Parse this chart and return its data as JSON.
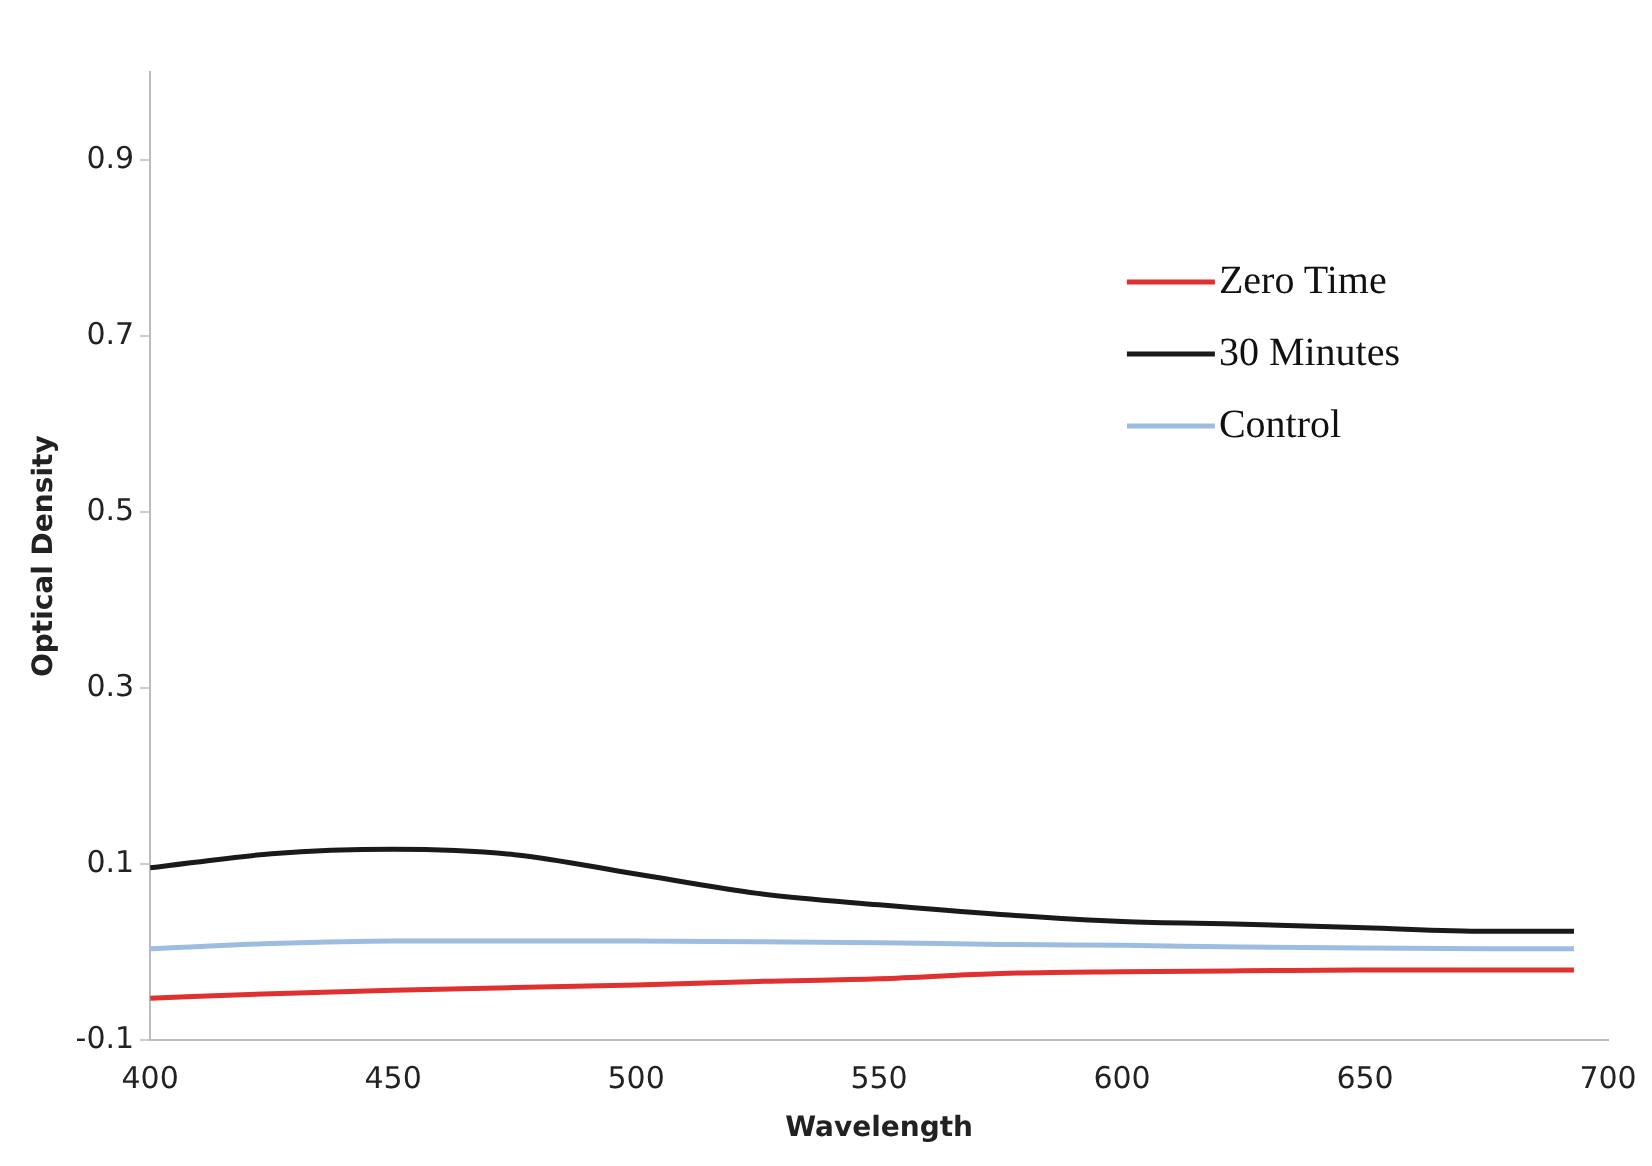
{
  "chart_data": {
    "type": "line",
    "xlabel": "Wavelength",
    "ylabel": "Optical Density",
    "x": [
      400,
      425,
      450,
      475,
      500,
      525,
      550,
      575,
      600,
      625,
      650,
      675,
      693
    ],
    "series": [
      {
        "name": "Zero Time",
        "color": "#e03030",
        "values": [
          -0.052,
          -0.047,
          -0.043,
          -0.04,
          -0.037,
          -0.033,
          -0.03,
          -0.024,
          -0.022,
          -0.021,
          -0.02,
          -0.02,
          -0.02
        ]
      },
      {
        "name": "30 Minutes",
        "color": "#1a1a1a",
        "values": [
          0.096,
          0.112,
          0.117,
          0.111,
          0.089,
          0.067,
          0.054,
          0.043,
          0.035,
          0.032,
          0.028,
          0.024,
          0.024
        ]
      },
      {
        "name": "Control",
        "color": "#9dbde0",
        "values": [
          0.004,
          0.01,
          0.013,
          0.013,
          0.013,
          0.012,
          0.011,
          0.009,
          0.008,
          0.006,
          0.005,
          0.004,
          0.004
        ]
      }
    ],
    "xlim": [
      400,
      700
    ],
    "xticks": [
      400,
      450,
      500,
      550,
      600,
      650,
      700
    ],
    "ylim": [
      -0.1,
      1.0
    ],
    "yticks": [
      -0.1,
      0.1,
      0.3,
      0.5,
      0.7,
      0.9
    ],
    "grid": false,
    "legend": "top right",
    "marker": "none",
    "line_style": "solid"
  }
}
